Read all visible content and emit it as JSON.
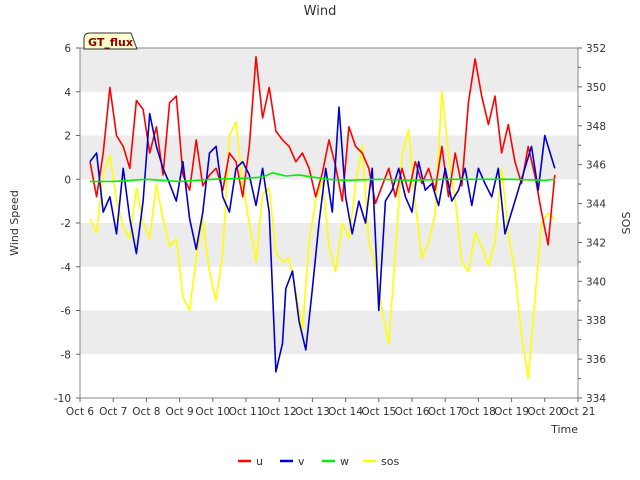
{
  "chart_data": {
    "type": "line",
    "title": "Wind",
    "xlabel": "Time",
    "ylabel": "Wind Speed",
    "y2label": "SOS",
    "badge": "GT_flux",
    "x_ticks": [
      "Oct 6",
      "Oct 7",
      "Oct 8",
      "Oct 9",
      "Oct 10",
      "Oct 11",
      "Oct 12",
      "Oct 13",
      "Oct 14",
      "Oct 15",
      "Oct 16",
      "Oct 17",
      "Oct 18",
      "Oct 19",
      "Oct 20",
      "Oct 21"
    ],
    "xlim": [
      6,
      21
    ],
    "ylim": [
      -10,
      6
    ],
    "y_ticks": [
      "-10",
      "-8",
      "-6",
      "-4",
      "-2",
      "0",
      "2",
      "4",
      "6"
    ],
    "y2lim": [
      334,
      352
    ],
    "y2_ticks": [
      "334",
      "336",
      "338",
      "340",
      "342",
      "344",
      "346",
      "348",
      "350",
      "352"
    ],
    "grid": "horizontal bands",
    "legend_position": "bottom",
    "colors": {
      "u": "#ff0000",
      "v": "#0000cc",
      "w": "#00ee00",
      "sos": "#ffff00",
      "band": "#ececec"
    },
    "series": [
      {
        "name": "u",
        "axis": "left",
        "x": [
          6.3,
          6.5,
          6.7,
          6.9,
          7.1,
          7.3,
          7.5,
          7.7,
          7.9,
          8.1,
          8.3,
          8.5,
          8.7,
          8.9,
          9.1,
          9.3,
          9.5,
          9.7,
          9.9,
          10.1,
          10.3,
          10.5,
          10.7,
          10.9,
          11.1,
          11.3,
          11.5,
          11.7,
          11.9,
          12.1,
          12.3,
          12.5,
          12.7,
          12.9,
          13.1,
          13.3,
          13.5,
          13.7,
          13.9,
          14.1,
          14.3,
          14.5,
          14.7,
          14.9,
          15.1,
          15.3,
          15.5,
          15.7,
          15.9,
          16.1,
          16.3,
          16.5,
          16.7,
          16.9,
          17.1,
          17.3,
          17.5,
          17.7,
          17.9,
          18.1,
          18.3,
          18.5,
          18.7,
          18.9,
          19.1,
          19.3,
          19.5,
          19.7,
          19.9,
          20.1,
          20.3
        ],
        "values": [
          0.8,
          -0.8,
          1.2,
          4.2,
          2.0,
          1.5,
          0.5,
          3.6,
          3.2,
          1.2,
          2.4,
          0.2,
          3.5,
          3.8,
          0.2,
          -0.5,
          1.8,
          -0.3,
          0.2,
          0.5,
          -0.5,
          1.2,
          0.8,
          -0.8,
          1.5,
          5.6,
          2.8,
          4.2,
          2.2,
          1.8,
          1.5,
          0.8,
          1.2,
          0.5,
          -0.8,
          0.3,
          1.8,
          0.6,
          -1.0,
          2.4,
          1.5,
          1.2,
          0.5,
          -1.1,
          -0.3,
          0.5,
          -0.8,
          0.5,
          -0.6,
          0.8,
          -0.2,
          0.5,
          -0.5,
          1.5,
          -0.8,
          1.2,
          -0.3,
          3.5,
          5.5,
          3.8,
          2.5,
          3.8,
          1.2,
          2.5,
          0.8,
          -0.2,
          1.5,
          0.2,
          -1.5,
          -3.0,
          0.2
        ]
      },
      {
        "name": "v",
        "axis": "left",
        "x": [
          6.3,
          6.5,
          6.7,
          6.9,
          7.1,
          7.3,
          7.5,
          7.7,
          7.9,
          8.1,
          8.3,
          8.5,
          8.7,
          8.9,
          9.1,
          9.3,
          9.5,
          9.7,
          9.9,
          10.1,
          10.3,
          10.5,
          10.7,
          10.9,
          11.1,
          11.3,
          11.5,
          11.7,
          11.9,
          12.1,
          12.2,
          12.4,
          12.6,
          12.8,
          13.0,
          13.2,
          13.4,
          13.6,
          13.8,
          14.0,
          14.2,
          14.4,
          14.6,
          14.8,
          15.0,
          15.2,
          15.4,
          15.6,
          15.8,
          16.0,
          16.2,
          16.4,
          16.6,
          16.8,
          17.0,
          17.2,
          17.4,
          17.6,
          17.8,
          18.0,
          18.2,
          18.4,
          18.6,
          18.8,
          19.0,
          19.2,
          19.4,
          19.6,
          19.8,
          20.0,
          20.3
        ],
        "values": [
          0.8,
          1.2,
          -1.5,
          -0.8,
          -2.5,
          0.5,
          -1.8,
          -3.4,
          -1.0,
          3.0,
          1.5,
          0.5,
          -0.2,
          -1.0,
          0.8,
          -1.8,
          -3.2,
          -1.5,
          1.2,
          1.5,
          -0.8,
          -1.5,
          0.5,
          0.8,
          0.2,
          -1.2,
          0.5,
          -1.5,
          -8.8,
          -7.5,
          -5.0,
          -4.2,
          -6.5,
          -7.8,
          -5.0,
          -2.0,
          0.5,
          -1.5,
          3.3,
          -0.8,
          -2.5,
          -1.0,
          -2.0,
          0.5,
          -6.0,
          -1.0,
          -0.5,
          0.5,
          -0.8,
          -1.5,
          0.8,
          -0.5,
          -0.2,
          -1.2,
          0.5,
          -1.0,
          -0.5,
          0.5,
          -1.2,
          0.5,
          -0.2,
          -0.8,
          0.5,
          -2.5,
          -1.5,
          -0.5,
          0.5,
          1.5,
          -0.5,
          2.0,
          0.5
        ]
      },
      {
        "name": "w",
        "axis": "left",
        "x": [
          6.3,
          7.0,
          8.0,
          9.0,
          10.0,
          11.0,
          11.5,
          11.8,
          12.2,
          12.6,
          13.0,
          13.5,
          14.0,
          15.0,
          16.0,
          17.0,
          18.0,
          19.0,
          20.0,
          20.3
        ],
        "values": [
          -0.1,
          -0.1,
          0.0,
          -0.1,
          0.0,
          0.05,
          0.1,
          0.3,
          0.15,
          0.2,
          0.1,
          0.0,
          -0.05,
          0.0,
          -0.05,
          0.0,
          0.0,
          0.0,
          -0.05,
          0.0
        ]
      },
      {
        "name": "sos",
        "axis": "right",
        "x": [
          6.3,
          6.5,
          6.7,
          6.9,
          7.1,
          7.3,
          7.5,
          7.7,
          7.9,
          8.1,
          8.3,
          8.5,
          8.7,
          8.9,
          9.1,
          9.3,
          9.5,
          9.7,
          9.9,
          10.1,
          10.3,
          10.5,
          10.7,
          10.9,
          11.1,
          11.3,
          11.5,
          11.7,
          11.9,
          12.1,
          12.3,
          12.5,
          12.7,
          12.9,
          13.1,
          13.3,
          13.5,
          13.7,
          13.9,
          14.1,
          14.3,
          14.5,
          14.7,
          14.9,
          15.1,
          15.3,
          15.5,
          15.7,
          15.9,
          16.1,
          16.3,
          16.5,
          16.7,
          16.9,
          17.1,
          17.3,
          17.5,
          17.7,
          17.9,
          18.1,
          18.3,
          18.5,
          18.7,
          18.9,
          19.1,
          19.3,
          19.5,
          19.7,
          19.9,
          20.1,
          20.3
        ],
        "values": [
          343.2,
          342.5,
          345.5,
          346.5,
          344.2,
          342.8,
          342.2,
          344.8,
          343.0,
          342.2,
          345.0,
          343.2,
          341.8,
          342.2,
          339.2,
          338.5,
          341.2,
          343.2,
          340.5,
          339.0,
          341.5,
          347.5,
          348.2,
          345.0,
          343.0,
          341.0,
          344.5,
          344.8,
          341.5,
          341.0,
          341.2,
          339.5,
          337.5,
          342.0,
          344.2,
          345.2,
          341.8,
          340.5,
          343.0,
          342.2,
          345.0,
          347.0,
          342.0,
          340.8,
          338.5,
          336.8,
          341.5,
          346.5,
          347.8,
          344.0,
          341.2,
          342.0,
          343.5,
          349.8,
          346.5,
          344.2,
          341.0,
          340.5,
          342.5,
          341.8,
          340.8,
          342.0,
          345.8,
          342.5,
          340.5,
          337.2,
          335.0,
          339.0,
          343.0,
          343.5,
          343.2
        ]
      }
    ]
  }
}
